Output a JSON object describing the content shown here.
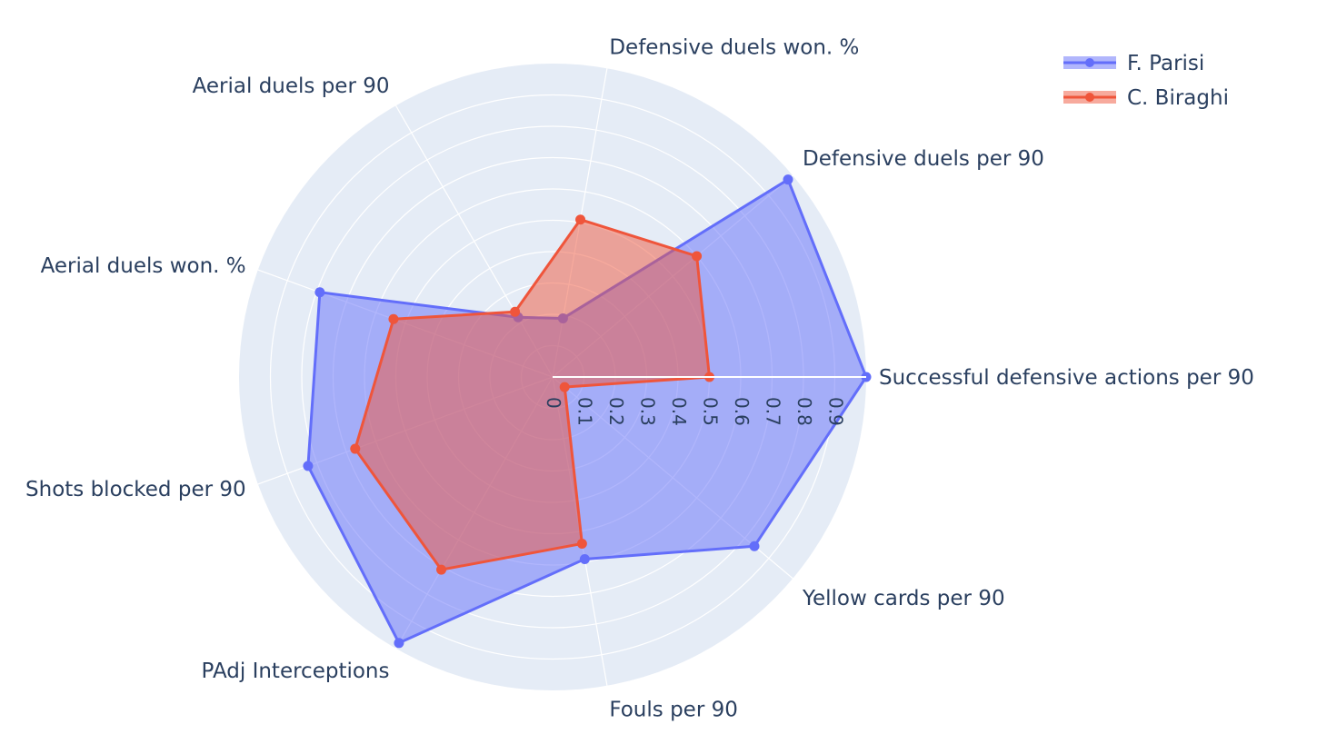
{
  "chart_data": {
    "type": "radar",
    "title": "",
    "categories": [
      "Successful defensive actions per 90",
      "Defensive duels per 90",
      "Defensive duels won. %",
      "Aerial duels per 90",
      "Aerial duels won. %",
      "Shots blocked per 90",
      "PAdj Interceptions",
      "Fouls per 90",
      "Yellow cards per 90"
    ],
    "series": [
      {
        "name": "F. Parisi",
        "color": "#636efa",
        "values": [
          1.0,
          0.98,
          0.19,
          0.22,
          0.79,
          0.83,
          0.98,
          0.59,
          0.84
        ]
      },
      {
        "name": "C. Biraghi",
        "color": "#ef553b",
        "values": [
          0.5,
          0.6,
          0.51,
          0.24,
          0.54,
          0.67,
          0.71,
          0.54,
          0.05
        ]
      }
    ],
    "radial_range": [
      0,
      1
    ],
    "radial_ticks": [
      "0",
      "0.1",
      "0.2",
      "0.3",
      "0.4",
      "0.5",
      "0.6",
      "0.7",
      "0.8",
      "0.9"
    ],
    "legend_position": "top-right",
    "grid": true
  }
}
